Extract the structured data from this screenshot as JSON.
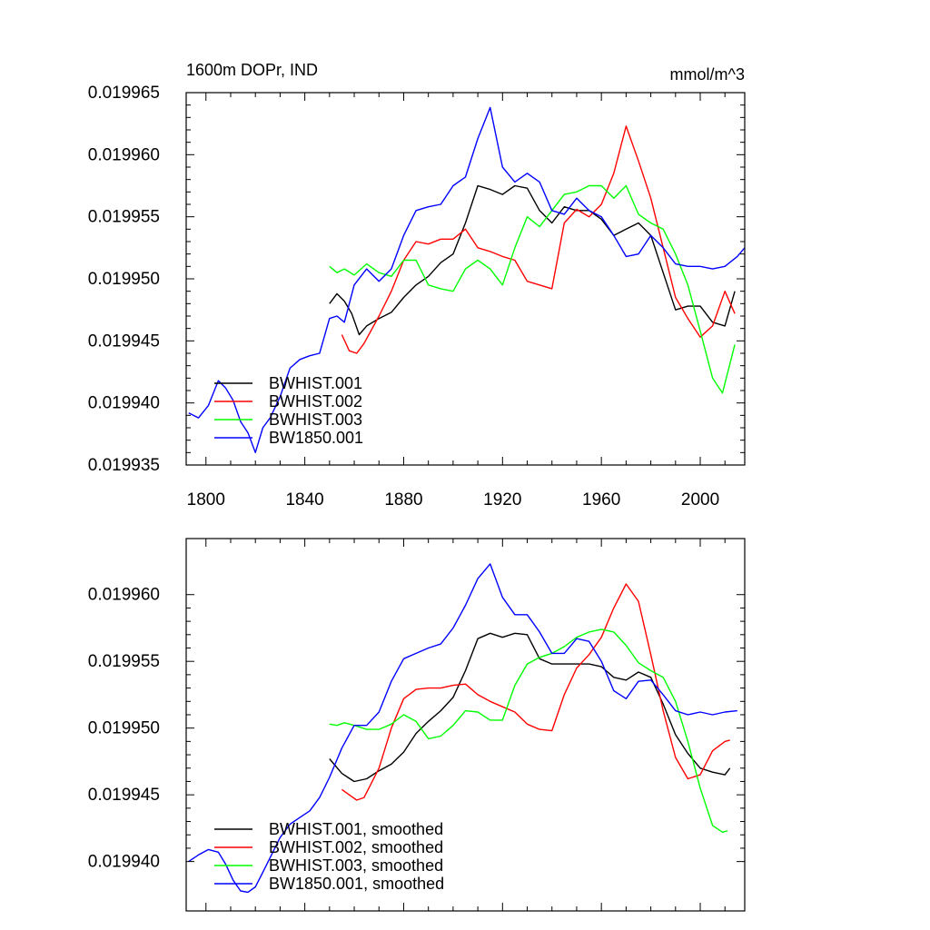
{
  "chart_data": [
    {
      "type": "line",
      "title": "1600m DOPr, IND",
      "units": "mmol/m^3",
      "xlabel": "",
      "ylabel": "",
      "xlim": [
        1792,
        2018
      ],
      "ylim": [
        0.019935,
        0.019965
      ],
      "x_ticks": [
        1800,
        1840,
        1880,
        1920,
        1960,
        2000
      ],
      "x_tick_labels": [
        "1800",
        "1840",
        "1880",
        "1920",
        "1960",
        "2000"
      ],
      "y_ticks": [
        0.019935,
        0.01994,
        0.019945,
        0.01995,
        0.019955,
        0.01996,
        0.019965
      ],
      "y_tick_labels": [
        "0.019935",
        "0.019940",
        "0.019945",
        "0.019950",
        "0.019955",
        "0.019960",
        "0.019965"
      ],
      "legend_position": "bottom-left",
      "series": [
        {
          "name": "BWHIST.001",
          "color": "#000000",
          "x": [
            1850,
            1853,
            1856,
            1859,
            1862,
            1865,
            1870,
            1875,
            1880,
            1885,
            1890,
            1895,
            1900,
            1905,
            1910,
            1915,
            1920,
            1925,
            1930,
            1935,
            1940,
            1945,
            1950,
            1955,
            1960,
            1965,
            1970,
            1975,
            1980,
            1985,
            1990,
            1995,
            2000,
            2005,
            2010,
            2014
          ],
          "y": [
            0.019948,
            0.0199488,
            0.0199482,
            0.0199472,
            0.0199455,
            0.0199462,
            0.0199468,
            0.0199473,
            0.0199485,
            0.0199495,
            0.0199502,
            0.0199513,
            0.019952,
            0.0199545,
            0.0199575,
            0.0199572,
            0.0199568,
            0.0199575,
            0.0199573,
            0.0199555,
            0.0199545,
            0.0199558,
            0.0199555,
            0.0199555,
            0.0199548,
            0.0199535,
            0.019954,
            0.0199545,
            0.0199535,
            0.0199505,
            0.0199475,
            0.0199478,
            0.0199478,
            0.0199465,
            0.0199462,
            0.019949
          ]
        },
        {
          "name": "BWHIST.002",
          "color": "#ff0000",
          "x": [
            1855,
            1858,
            1861,
            1864,
            1870,
            1875,
            1880,
            1885,
            1890,
            1895,
            1900,
            1905,
            1910,
            1915,
            1920,
            1925,
            1930,
            1935,
            1940,
            1945,
            1950,
            1955,
            1960,
            1965,
            1970,
            1975,
            1980,
            1985,
            1990,
            1995,
            2000,
            2005,
            2010,
            2014
          ],
          "y": [
            0.0199455,
            0.0199442,
            0.019944,
            0.0199448,
            0.019947,
            0.019949,
            0.0199515,
            0.019953,
            0.0199528,
            0.0199532,
            0.0199532,
            0.019954,
            0.0199525,
            0.0199522,
            0.0199518,
            0.0199515,
            0.0199498,
            0.0199495,
            0.0199492,
            0.0199545,
            0.0199556,
            0.019955,
            0.019956,
            0.0199585,
            0.0199623,
            0.0199595,
            0.0199565,
            0.0199525,
            0.0199485,
            0.0199468,
            0.0199453,
            0.0199462,
            0.019949,
            0.0199472
          ]
        },
        {
          "name": "BWHIST.003",
          "color": "#00ff00",
          "x": [
            1850,
            1853,
            1856,
            1860,
            1865,
            1870,
            1875,
            1880,
            1885,
            1890,
            1895,
            1900,
            1905,
            1910,
            1915,
            1920,
            1925,
            1930,
            1935,
            1940,
            1945,
            1950,
            1955,
            1960,
            1965,
            1970,
            1975,
            1980,
            1985,
            1990,
            1995,
            2000,
            2005,
            2009,
            2014
          ],
          "y": [
            0.019951,
            0.0199505,
            0.0199508,
            0.0199503,
            0.0199512,
            0.0199505,
            0.0199502,
            0.0199515,
            0.0199515,
            0.0199495,
            0.0199492,
            0.019949,
            0.0199508,
            0.0199515,
            0.0199508,
            0.0199495,
            0.0199525,
            0.019955,
            0.0199542,
            0.0199555,
            0.0199568,
            0.019957,
            0.0199575,
            0.0199575,
            0.0199565,
            0.0199575,
            0.0199552,
            0.0199545,
            0.019954,
            0.019952,
            0.0199495,
            0.0199458,
            0.019942,
            0.0199408,
            0.0199447
          ]
        },
        {
          "name": "BW1850.001",
          "color": "#0000ff",
          "x": [
            1793,
            1797,
            1801,
            1805,
            1808,
            1811,
            1814,
            1817,
            1820,
            1823,
            1826,
            1830,
            1834,
            1838,
            1842,
            1846,
            1850,
            1853,
            1856,
            1860,
            1865,
            1870,
            1875,
            1880,
            1885,
            1890,
            1895,
            1900,
            1905,
            1910,
            1915,
            1920,
            1925,
            1930,
            1935,
            1940,
            1945,
            1950,
            1955,
            1960,
            1965,
            1970,
            1975,
            1980,
            1985,
            1990,
            1995,
            2000,
            2005,
            2010,
            2015,
            2018
          ],
          "y": [
            0.0199392,
            0.0199388,
            0.0199398,
            0.0199418,
            0.0199412,
            0.0199402,
            0.0199385,
            0.0199376,
            0.019936,
            0.019938,
            0.0199388,
            0.0199405,
            0.0199428,
            0.0199435,
            0.0199438,
            0.019944,
            0.0199468,
            0.019947,
            0.0199465,
            0.0199495,
            0.0199508,
            0.0199498,
            0.0199508,
            0.0199535,
            0.0199555,
            0.0199558,
            0.019956,
            0.0199575,
            0.0199582,
            0.0199613,
            0.0199638,
            0.019959,
            0.0199578,
            0.0199585,
            0.0199578,
            0.0199555,
            0.0199552,
            0.0199565,
            0.0199555,
            0.019955,
            0.0199535,
            0.0199518,
            0.019952,
            0.0199535,
            0.0199525,
            0.0199512,
            0.019951,
            0.019951,
            0.0199508,
            0.019951,
            0.0199518,
            0.0199525
          ]
        }
      ]
    },
    {
      "type": "line",
      "title": "",
      "xlabel": "",
      "ylabel": "",
      "xlim": [
        1792,
        2018
      ],
      "ylim": [
        0.0199363,
        0.0199642
      ],
      "x_ticks": [
        1800,
        1840,
        1880,
        1920,
        1960,
        2000
      ],
      "x_tick_labels": [],
      "y_ticks": [
        0.01994,
        0.019945,
        0.01995,
        0.019955,
        0.01996
      ],
      "y_tick_labels": [
        "0.019940",
        "0.019945",
        "0.019950",
        "0.019955",
        "0.019960"
      ],
      "legend_position": "bottom-left",
      "series": [
        {
          "name": "BWHIST.001, smoothed",
          "color": "#000000",
          "x": [
            1850,
            1855,
            1860,
            1865,
            1870,
            1875,
            1880,
            1885,
            1890,
            1895,
            1900,
            1905,
            1910,
            1915,
            1920,
            1925,
            1930,
            1935,
            1940,
            1945,
            1950,
            1955,
            1960,
            1965,
            1970,
            1975,
            1980,
            1985,
            1990,
            1995,
            2000,
            2005,
            2010,
            2012
          ],
          "y": [
            0.0199477,
            0.0199466,
            0.019946,
            0.0199462,
            0.0199468,
            0.0199473,
            0.0199482,
            0.0199496,
            0.0199505,
            0.0199513,
            0.0199523,
            0.0199543,
            0.0199567,
            0.0199571,
            0.0199568,
            0.0199571,
            0.019957,
            0.0199552,
            0.0199548,
            0.0199548,
            0.0199548,
            0.0199548,
            0.0199546,
            0.0199538,
            0.0199536,
            0.0199542,
            0.0199538,
            0.0199518,
            0.0199495,
            0.0199481,
            0.019947,
            0.0199467,
            0.0199465,
            0.019947
          ]
        },
        {
          "name": "BWHIST.002, smoothed",
          "color": "#ff0000",
          "x": [
            1855,
            1858,
            1861,
            1864,
            1870,
            1875,
            1880,
            1885,
            1890,
            1895,
            1900,
            1905,
            1910,
            1915,
            1920,
            1925,
            1930,
            1935,
            1940,
            1945,
            1950,
            1955,
            1960,
            1965,
            1970,
            1975,
            1980,
            1985,
            1990,
            1995,
            2000,
            2005,
            2010,
            2012
          ],
          "y": [
            0.0199454,
            0.019945,
            0.0199446,
            0.0199448,
            0.019947,
            0.01995,
            0.0199522,
            0.0199529,
            0.019953,
            0.019953,
            0.0199532,
            0.0199533,
            0.0199525,
            0.019952,
            0.0199516,
            0.0199512,
            0.0199503,
            0.0199499,
            0.0199498,
            0.0199525,
            0.0199545,
            0.0199555,
            0.0199568,
            0.019959,
            0.0199608,
            0.0199595,
            0.0199555,
            0.0199513,
            0.0199478,
            0.0199462,
            0.0199465,
            0.0199483,
            0.019949,
            0.0199491
          ]
        },
        {
          "name": "BWHIST.003, smoothed",
          "color": "#00ff00",
          "x": [
            1850,
            1853,
            1856,
            1860,
            1865,
            1870,
            1875,
            1880,
            1885,
            1890,
            1895,
            1900,
            1905,
            1910,
            1915,
            1920,
            1925,
            1930,
            1935,
            1940,
            1945,
            1950,
            1955,
            1960,
            1965,
            1970,
            1975,
            1980,
            1985,
            1990,
            1995,
            2000,
            2005,
            2009,
            2011
          ],
          "y": [
            0.0199503,
            0.0199502,
            0.0199504,
            0.0199502,
            0.0199499,
            0.0199499,
            0.0199503,
            0.019951,
            0.0199505,
            0.0199492,
            0.0199494,
            0.0199502,
            0.0199513,
            0.0199512,
            0.0199506,
            0.0199506,
            0.0199532,
            0.0199548,
            0.0199553,
            0.0199556,
            0.0199561,
            0.0199568,
            0.0199572,
            0.0199574,
            0.0199572,
            0.0199562,
            0.0199549,
            0.0199543,
            0.0199538,
            0.019952,
            0.019949,
            0.0199455,
            0.0199427,
            0.0199422,
            0.0199423
          ]
        },
        {
          "name": "BW1850.001, smoothed",
          "color": "#0000ff",
          "x": [
            1793,
            1797,
            1801,
            1805,
            1808,
            1811,
            1814,
            1817,
            1820,
            1823,
            1826,
            1830,
            1834,
            1838,
            1842,
            1846,
            1850,
            1855,
            1860,
            1865,
            1870,
            1875,
            1880,
            1885,
            1890,
            1895,
            1900,
            1905,
            1910,
            1915,
            1920,
            1925,
            1930,
            1935,
            1940,
            1945,
            1950,
            1955,
            1960,
            1965,
            1970,
            1975,
            1980,
            1985,
            1990,
            1995,
            2000,
            2005,
            2010,
            2015
          ],
          "y": [
            0.01994,
            0.0199405,
            0.0199409,
            0.0199407,
            0.0199398,
            0.0199386,
            0.0199378,
            0.0199377,
            0.0199381,
            0.0199392,
            0.0199403,
            0.0199418,
            0.0199428,
            0.0199433,
            0.0199438,
            0.0199448,
            0.0199463,
            0.0199485,
            0.0199502,
            0.0199502,
            0.0199512,
            0.0199535,
            0.0199552,
            0.0199556,
            0.019956,
            0.0199563,
            0.0199575,
            0.0199592,
            0.0199612,
            0.0199623,
            0.0199598,
            0.0199585,
            0.0199585,
            0.0199572,
            0.0199556,
            0.0199556,
            0.0199567,
            0.0199565,
            0.019955,
            0.0199528,
            0.0199522,
            0.0199535,
            0.0199536,
            0.0199525,
            0.0199513,
            0.019951,
            0.0199512,
            0.019951,
            0.0199512,
            0.0199513
          ]
        }
      ]
    }
  ]
}
